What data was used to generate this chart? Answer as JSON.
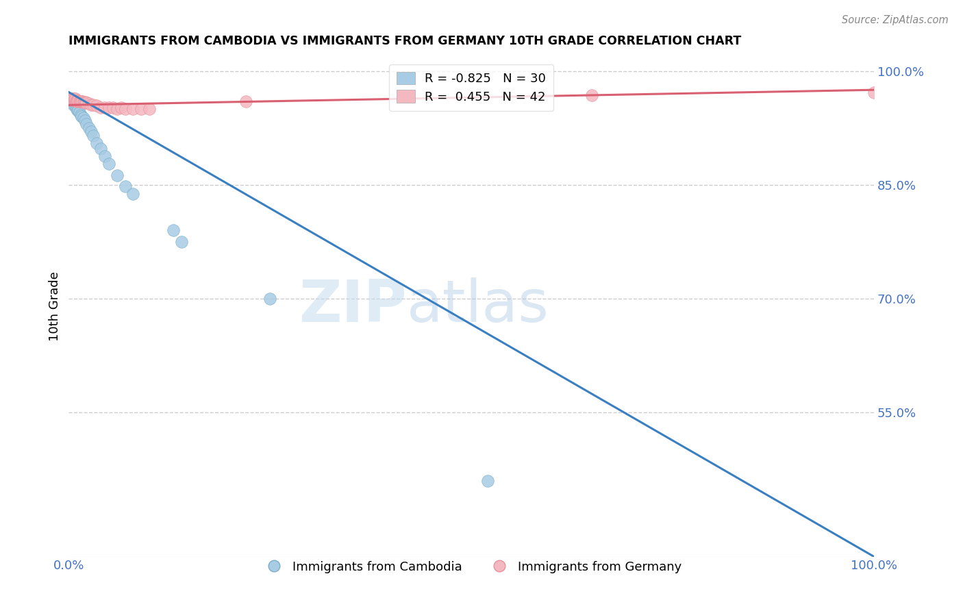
{
  "title": "IMMIGRANTS FROM CAMBODIA VS IMMIGRANTS FROM GERMANY 10TH GRADE CORRELATION CHART",
  "source": "Source: ZipAtlas.com",
  "ylabel": "10th Grade",
  "xlim": [
    0.0,
    1.0
  ],
  "ylim": [
    0.36,
    1.02
  ],
  "legend_blue_label": "Immigrants from Cambodia",
  "legend_pink_label": "Immigrants from Germany",
  "R_blue": -0.825,
  "N_blue": 30,
  "R_pink": 0.455,
  "N_pink": 42,
  "blue_color": "#a8cce4",
  "pink_color": "#f4b8c1",
  "blue_edge_color": "#7aaec8",
  "pink_edge_color": "#e8909a",
  "blue_line_color": "#3a7fc1",
  "pink_line_color": "#d96070",
  "watermark_zip": "ZIP",
  "watermark_atlas": "atlas",
  "ytick_positions": [
    0.55,
    0.7,
    0.85,
    1.0
  ],
  "ytick_labels": [
    "55.0%",
    "70.0%",
    "85.0%",
    "100.0%"
  ],
  "cambodia_x": [
    0.003,
    0.004,
    0.005,
    0.006,
    0.007,
    0.008,
    0.009,
    0.01,
    0.011,
    0.012,
    0.013,
    0.015,
    0.016,
    0.018,
    0.02,
    0.022,
    0.025,
    0.028,
    0.03,
    0.035,
    0.04,
    0.045,
    0.05,
    0.06,
    0.07,
    0.08,
    0.13,
    0.14,
    0.25,
    0.52
  ],
  "cambodia_y": [
    0.963,
    0.96,
    0.96,
    0.955,
    0.955,
    0.958,
    0.952,
    0.95,
    0.948,
    0.948,
    0.945,
    0.942,
    0.94,
    0.938,
    0.935,
    0.93,
    0.925,
    0.92,
    0.915,
    0.905,
    0.898,
    0.888,
    0.878,
    0.862,
    0.848,
    0.838,
    0.79,
    0.775,
    0.7,
    0.46
  ],
  "germany_x": [
    0.003,
    0.004,
    0.005,
    0.005,
    0.006,
    0.006,
    0.007,
    0.007,
    0.008,
    0.008,
    0.009,
    0.01,
    0.01,
    0.011,
    0.012,
    0.013,
    0.014,
    0.015,
    0.016,
    0.017,
    0.018,
    0.019,
    0.02,
    0.021,
    0.022,
    0.025,
    0.028,
    0.03,
    0.035,
    0.04,
    0.045,
    0.05,
    0.055,
    0.06,
    0.065,
    0.07,
    0.08,
    0.09,
    0.1,
    0.22,
    0.65,
    1.0
  ],
  "germany_y": [
    0.962,
    0.963,
    0.963,
    0.962,
    0.962,
    0.963,
    0.963,
    0.962,
    0.961,
    0.963,
    0.961,
    0.961,
    0.96,
    0.961,
    0.961,
    0.96,
    0.96,
    0.96,
    0.96,
    0.96,
    0.959,
    0.959,
    0.958,
    0.959,
    0.958,
    0.957,
    0.955,
    0.955,
    0.954,
    0.952,
    0.952,
    0.952,
    0.952,
    0.95,
    0.952,
    0.95,
    0.95,
    0.95,
    0.95,
    0.96,
    0.968,
    0.972
  ],
  "blue_trendline_x": [
    0.0,
    1.0
  ],
  "blue_trendline_y": [
    0.972,
    0.36
  ],
  "pink_trendline_x": [
    0.0,
    1.0
  ],
  "pink_trendline_y": [
    0.955,
    0.975
  ]
}
